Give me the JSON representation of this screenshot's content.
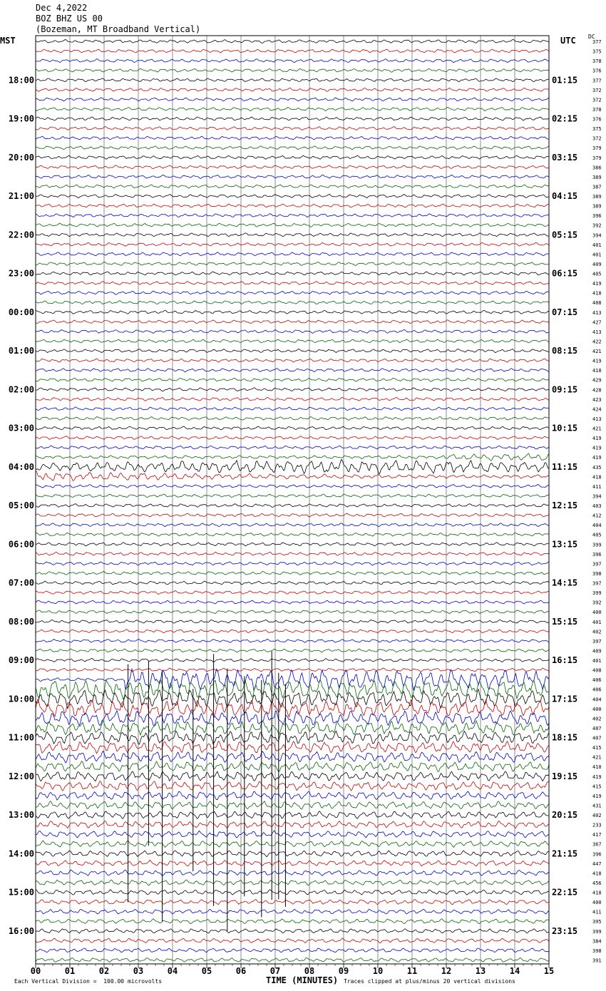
{
  "header": {
    "line1": "Dec 4,2022",
    "line2": "BOZ BHZ US 00",
    "line3": "(Bozeman, MT Broadband Vertical)"
  },
  "left_axis_title": "MST",
  "right_axis_title": "UTC",
  "dc_label": "DC",
  "footer": {
    "left": "Each Vertical Division =  100.00 microvolts",
    "xlabel": "TIME (MINUTES)",
    "right": "Traces clipped at plus/minus 20 vertical divisions"
  },
  "chart_data": {
    "type": "line",
    "title": "",
    "xlabel": "TIME (MINUTES)",
    "x_ticks": [
      "00",
      "01",
      "02",
      "03",
      "04",
      "05",
      "06",
      "07",
      "08",
      "09",
      "10",
      "11",
      "12",
      "13",
      "14",
      "15"
    ],
    "xlim": [
      0,
      15
    ],
    "trace_colors": [
      "#000000",
      "#cc0000",
      "#0000cc",
      "#006600"
    ],
    "left_hour_labels": [
      "18:00",
      "19:00",
      "20:00",
      "21:00",
      "22:00",
      "23:00",
      "00:00",
      "01:00",
      "02:00",
      "03:00",
      "04:00",
      "05:00",
      "06:00",
      "07:00",
      "08:00",
      "09:00",
      "10:00",
      "11:00",
      "12:00",
      "13:00",
      "14:00",
      "15:00",
      "16:00"
    ],
    "right_hour_labels": [
      "01:15",
      "02:15",
      "03:15",
      "04:15",
      "05:15",
      "06:15",
      "07:15",
      "08:15",
      "09:15",
      "10:15",
      "11:15",
      "12:15",
      "13:15",
      "14:15",
      "15:15",
      "16:15",
      "17:15",
      "18:15",
      "19:15",
      "20:15",
      "21:15",
      "22:15",
      "23:15"
    ],
    "dc_offsets": [
      377,
      375,
      378,
      376,
      377,
      372,
      372,
      378,
      376,
      375,
      372,
      379,
      379,
      386,
      389,
      387,
      389,
      389,
      396,
      392,
      394,
      401,
      401,
      409,
      405,
      419,
      418,
      408,
      413,
      427,
      413,
      422,
      421,
      419,
      418,
      429,
      428,
      423,
      424,
      413,
      421,
      419,
      419,
      419,
      435,
      418,
      411,
      394,
      403,
      412,
      404,
      405,
      399,
      396,
      397,
      398,
      397,
      399,
      392,
      400,
      401,
      402,
      397,
      409,
      401,
      408,
      406,
      406,
      404,
      400,
      402,
      407,
      407,
      415,
      421,
      410,
      419,
      415,
      419,
      431,
      402,
      233,
      417,
      367,
      396,
      447,
      418,
      456,
      418,
      400,
      411,
      395,
      399,
      384,
      398,
      391
    ],
    "quake": {
      "origin_row": 43,
      "origin_minute": 11.8,
      "large_event_start_row": 66,
      "large_event_start_minute": 2.6
    }
  }
}
